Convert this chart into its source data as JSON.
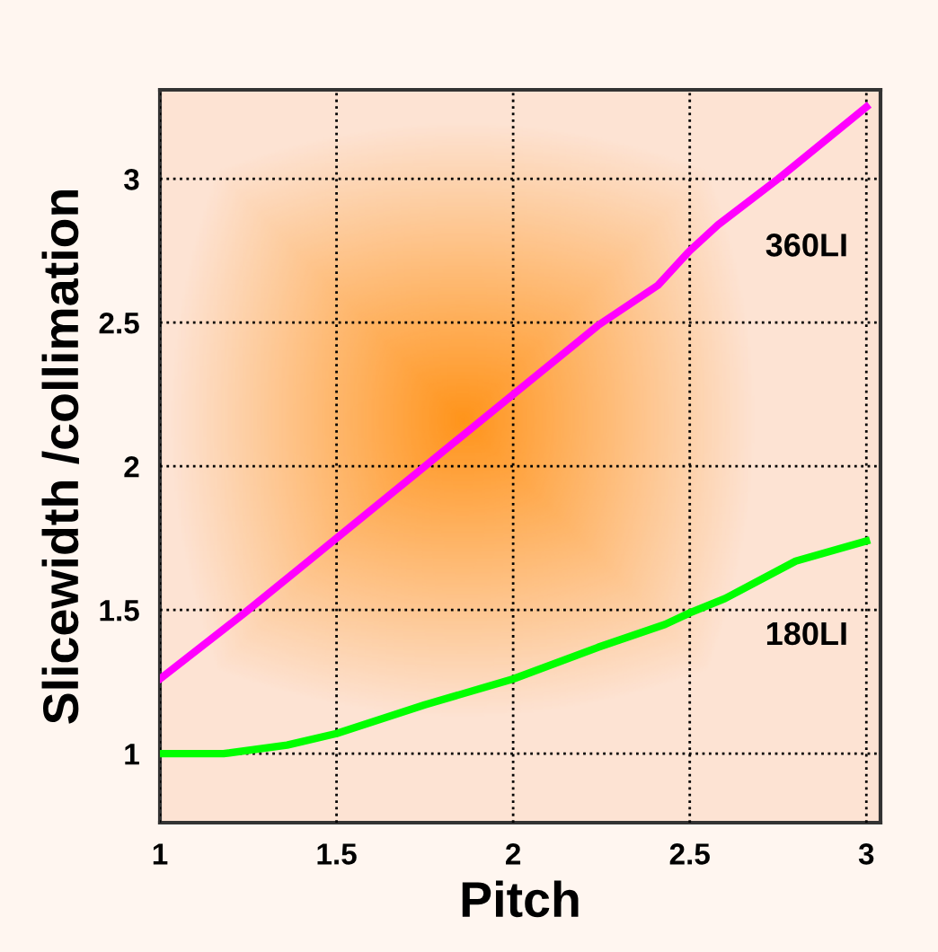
{
  "chart_data": {
    "type": "line",
    "xlabel": "Pitch",
    "ylabel": "Slicewidth /collimation",
    "series": [
      {
        "name": "360LI",
        "color": "#ff00ff",
        "x": [
          1.0,
          1.24,
          1.39,
          1.5,
          1.75,
          2.0,
          2.24,
          2.41,
          2.5,
          2.58,
          2.75,
          3.0
        ],
        "values": [
          1.26,
          1.49,
          1.64,
          1.75,
          2.0,
          2.25,
          2.49,
          2.63,
          2.75,
          2.84,
          3.0,
          3.25
        ]
      },
      {
        "name": "180LI",
        "color": "#00ff00",
        "x": [
          1.0,
          1.18,
          1.36,
          1.5,
          1.75,
          2.0,
          2.24,
          2.43,
          2.5,
          2.6,
          2.8,
          3.0
        ],
        "values": [
          1.0,
          1.0,
          1.03,
          1.07,
          1.17,
          1.26,
          1.37,
          1.45,
          1.49,
          1.54,
          1.67,
          1.74
        ]
      }
    ],
    "xlim": [
      1.0,
      3.04
    ],
    "ylim": [
      0.76,
      3.31
    ],
    "xticks": [
      1,
      1.5,
      2,
      2.5,
      3
    ],
    "yticks": [
      1,
      1.5,
      2,
      2.5,
      3
    ],
    "grid": true,
    "legend": false,
    "marker": "none",
    "line_style": "solid"
  }
}
